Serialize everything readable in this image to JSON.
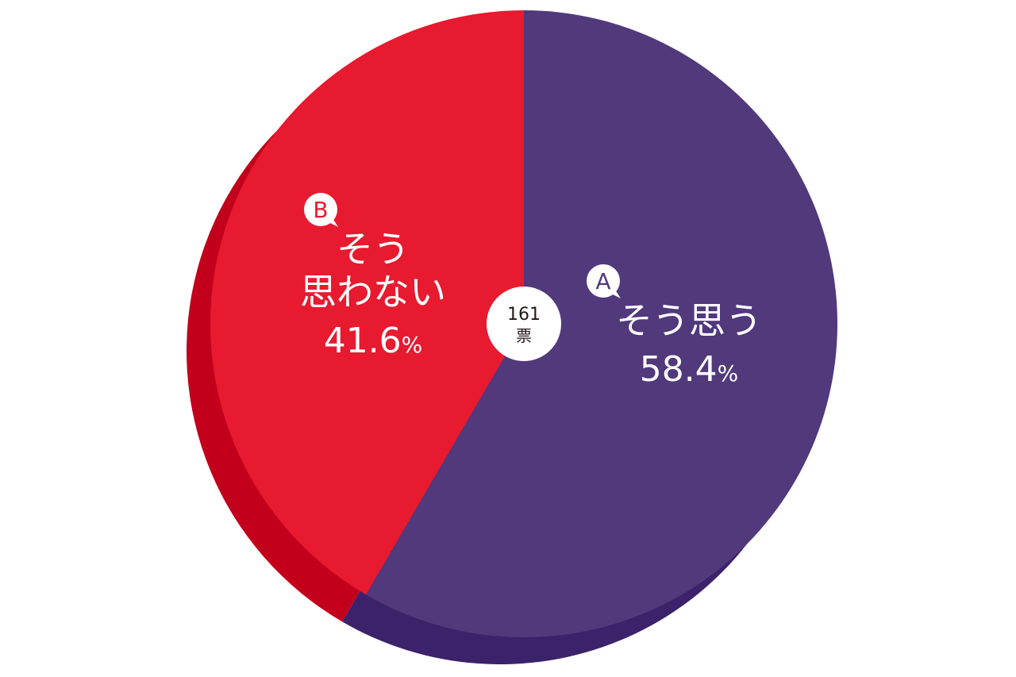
{
  "chart_data": {
    "type": "pie",
    "total": {
      "count": "161",
      "unit": "票"
    },
    "slices": [
      {
        "id": "A",
        "label": "そう思う",
        "value": 58.4,
        "value_text": "58.4",
        "percent_sign": "%",
        "color": "#51397b",
        "side_color": "#3c226a"
      },
      {
        "id": "B",
        "label_lines": [
          "そう",
          "思わない"
        ],
        "value": 41.6,
        "value_text": "41.6",
        "percent_sign": "%",
        "color": "#e71a2f",
        "side_color": "#c3001b"
      }
    ],
    "start": "top",
    "direction": "clockwise"
  }
}
